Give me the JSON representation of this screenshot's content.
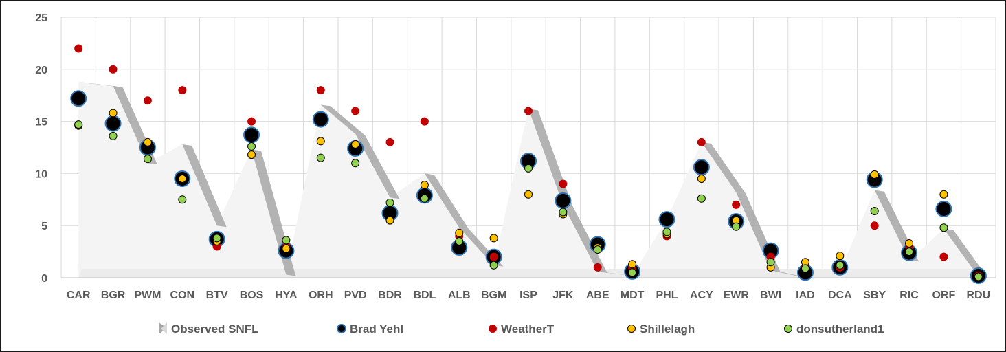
{
  "chart_data": {
    "type": "scatter",
    "title": "",
    "xlabel": "",
    "ylabel": "",
    "ylim": [
      0,
      25
    ],
    "yticks": [
      "0",
      "5",
      "10",
      "15",
      "20",
      "25"
    ],
    "grid": true,
    "legend_position": "bottom",
    "categories": [
      "CAR",
      "BGR",
      "PWM",
      "CON",
      "BTV",
      "BOS",
      "HYA",
      "ORH",
      "PVD",
      "BDR",
      "BDL",
      "ALB",
      "BGM",
      "ISP",
      "JFK",
      "ABE",
      "MDT",
      "PHL",
      "ACY",
      "EWR",
      "BWI",
      "IAD",
      "DCA",
      "SBY",
      "RIC",
      "ORF",
      "RDU"
    ],
    "series": [
      {
        "name": "Observed SNFL",
        "kind": "area",
        "color": "#bfbfbf",
        "values": [
          18.8,
          18.4,
          11.0,
          12.8,
          5.0,
          12.3,
          0.3,
          16.6,
          13.8,
          7.7,
          10.0,
          4.8,
          1.2,
          16.2,
          7.0,
          0.6,
          0.2,
          5.6,
          13.0,
          8.2,
          0.7,
          0.0,
          0.6,
          8.4,
          1.7,
          4.7,
          0.1
        ]
      },
      {
        "name": "Brad Yehl",
        "kind": "marker",
        "color": "#000000",
        "edge": "#2e75b6",
        "size": "large",
        "values": [
          17.2,
          14.8,
          12.5,
          9.5,
          3.7,
          13.7,
          2.6,
          15.2,
          12.4,
          6.2,
          7.9,
          2.9,
          2.0,
          11.2,
          7.4,
          3.2,
          0.6,
          5.6,
          10.6,
          5.4,
          2.6,
          0.5,
          1.0,
          9.4,
          2.4,
          6.6,
          0.2
        ]
      },
      {
        "name": "WeatherT",
        "kind": "marker",
        "color": "#c00000",
        "edge": "#c00000",
        "size": "small",
        "values": [
          22,
          20,
          17,
          18,
          3,
          15,
          3,
          18,
          16,
          13,
          15,
          4,
          2,
          16,
          9,
          1,
          1,
          4,
          13,
          7,
          2,
          1,
          1,
          5,
          3,
          2,
          0.2
        ]
      },
      {
        "name": "Shillelagh",
        "kind": "marker",
        "color": "#ffc000",
        "edge": "#000000",
        "size": "small",
        "values": [
          14.6,
          15.8,
          13.0,
          9.5,
          3.5,
          11.8,
          2.8,
          13.1,
          12.8,
          5.5,
          8.9,
          4.3,
          3.8,
          8.0,
          6.1,
          2.9,
          1.3,
          4.2,
          9.5,
          5.5,
          1.0,
          1.5,
          2.1,
          9.9,
          3.3,
          8.0,
          0.1
        ]
      },
      {
        "name": "donsutherland1",
        "kind": "marker",
        "color": "#92d050",
        "edge": "#000000",
        "size": "small",
        "values": [
          14.7,
          13.6,
          11.4,
          7.5,
          3.8,
          12.6,
          3.6,
          11.5,
          11.0,
          7.2,
          7.6,
          3.5,
          1.2,
          10.5,
          6.3,
          2.7,
          0.5,
          4.4,
          7.6,
          4.9,
          1.5,
          0.9,
          1.2,
          6.4,
          2.5,
          4.8,
          0.1
        ]
      }
    ]
  }
}
